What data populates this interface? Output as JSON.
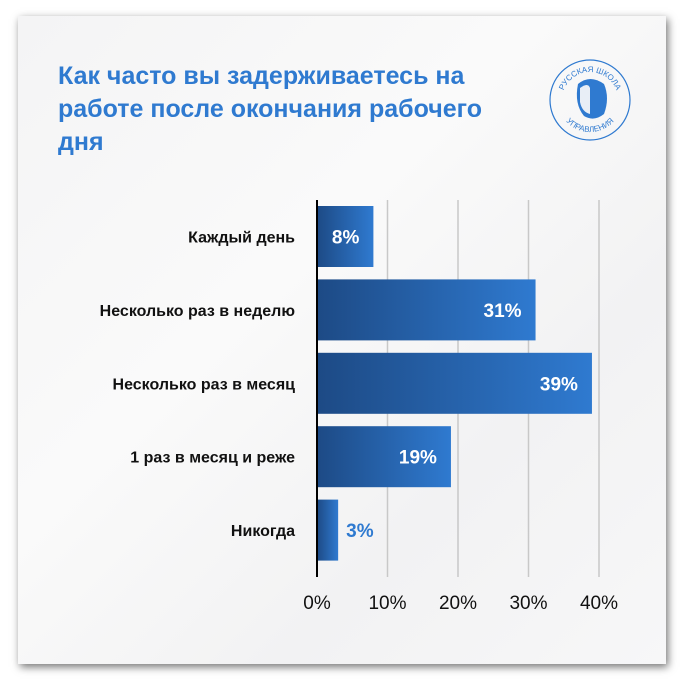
{
  "title": "Как часто вы задерживаетесь на работе после окончания рабочего дня",
  "logo": {
    "text_top": "РУССКАЯ ШКОЛА",
    "text_bottom": "УПРАВЛЕНИЯ"
  },
  "colors": {
    "title": "#2f7ad0",
    "bar_dark": "#1d4a85",
    "bar_light": "#2f7ad0",
    "outside_label": "#2f7ad0"
  },
  "chart_data": {
    "type": "bar",
    "orientation": "horizontal",
    "categories": [
      "Каждый день",
      "Несколько раз в неделю",
      "Несколько раз в месяц",
      "1 раз в месяц и реже",
      "Никогда"
    ],
    "values": [
      8,
      31,
      39,
      19,
      3
    ],
    "data_labels": [
      "8%",
      "31%",
      "39%",
      "19%",
      "3%"
    ],
    "xlim": [
      0,
      40
    ],
    "xticks": [
      "0%",
      "10%",
      "20%",
      "30%",
      "40%"
    ],
    "grid": true,
    "xlabel": "",
    "ylabel": ""
  }
}
